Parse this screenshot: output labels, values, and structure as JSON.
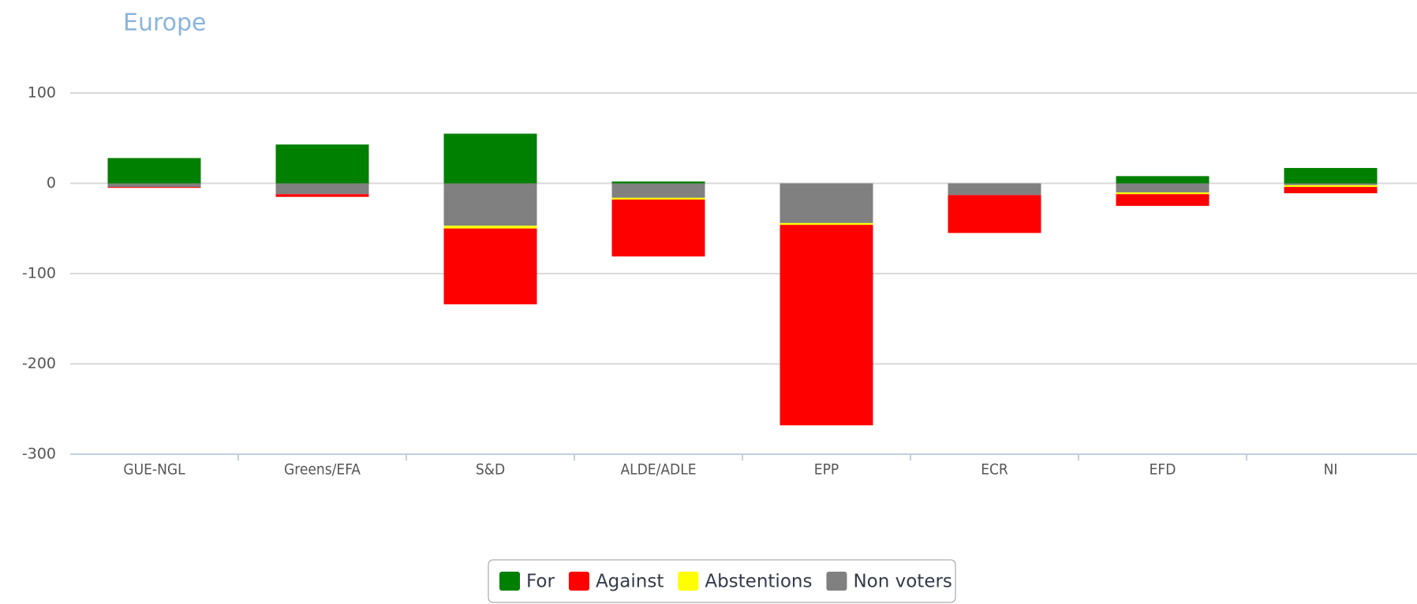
{
  "chart_data": {
    "type": "stacked_bar",
    "logo": "Europe",
    "categories": [
      "GUE-NGL",
      "Greens/EFA",
      "S&D",
      "ALDE/ADLE",
      "EPP",
      "ECR",
      "EFD",
      "NI"
    ],
    "series": [
      {
        "name": "For",
        "color": "#008000",
        "values": [
          28,
          43,
          55,
          2,
          0,
          0,
          8,
          17
        ]
      },
      {
        "name": "Against",
        "color": "#ff0000",
        "values": [
          -1,
          -3,
          -84,
          -63,
          -222,
          -42,
          -13,
          -7
        ]
      },
      {
        "name": "Abstentions",
        "color": "#ffff00",
        "values": [
          0,
          0,
          -3,
          -2,
          -2,
          0,
          -2,
          -2
        ]
      },
      {
        "name": "Non voters",
        "color": "#808080",
        "values": [
          -4,
          -12,
          -47,
          -16,
          -44,
          -13,
          -10,
          -2
        ]
      }
    ],
    "ylim": [
      -300,
      100
    ],
    "yticks": [
      -300,
      -200,
      -100,
      0,
      100
    ],
    "grid": true
  }
}
